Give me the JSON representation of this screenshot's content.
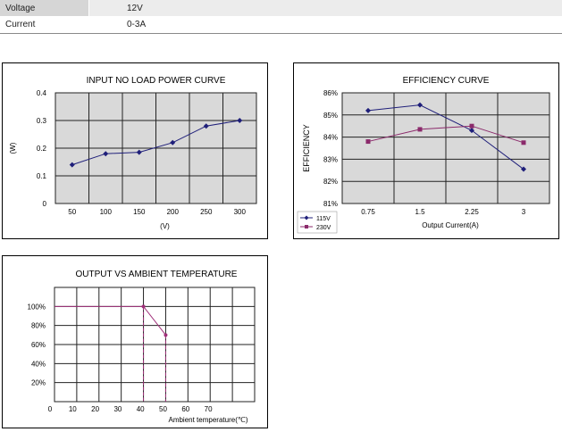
{
  "specs": [
    {
      "label": "Voltage",
      "value": "12V"
    },
    {
      "label": "Current",
      "value": "0-3A"
    }
  ],
  "colors": {
    "plot_bg": "#d9d9d9",
    "series_115v": "#1f1f7a",
    "series_230v": "#8b2a6b",
    "derating": "#a0307a",
    "grid": "#222222"
  },
  "chart_data": [
    {
      "type": "line",
      "title": "INPUT NO LOAD POWER CURVE",
      "xlabel": "(V)",
      "ylabel": "(W)",
      "x": [
        50,
        100,
        150,
        200,
        250,
        300
      ],
      "xtick_labels": [
        "50",
        "100",
        "150",
        "200",
        "250",
        "300"
      ],
      "ytick_labels": [
        "0",
        "0.1",
        "0.2",
        "0.3",
        "0.4"
      ],
      "ylim": [
        0,
        0.4
      ],
      "grid": true,
      "series": [
        {
          "values": [
            0.14,
            0.18,
            0.185,
            0.22,
            0.28,
            0.3
          ]
        }
      ]
    },
    {
      "type": "line",
      "title": "EFFICIENCY CURVE",
      "xlabel": "Output Current(A)",
      "ylabel": "EFFICIENCY",
      "x": [
        0.75,
        1.5,
        2.25,
        3
      ],
      "xtick_labels": [
        "0.75",
        "1.5",
        "2.25",
        "3"
      ],
      "ytick_labels": [
        "81%",
        "82%",
        "83%",
        "84%",
        "85%",
        "86%"
      ],
      "ylim": [
        81,
        86
      ],
      "grid": true,
      "legend": "bottom-left",
      "series": [
        {
          "name": "115V",
          "values": [
            85.2,
            85.45,
            84.3,
            82.55
          ]
        },
        {
          "name": "230V",
          "values": [
            83.8,
            84.35,
            84.5,
            83.75
          ]
        }
      ]
    },
    {
      "type": "line",
      "title": "OUTPUT VS AMBIENT TEMPERATURE",
      "xlabel": "Ambient temperature(℃)",
      "ylabel": "",
      "xtick_labels": [
        "0",
        "10",
        "20",
        "30",
        "40",
        "50",
        "60",
        "70"
      ],
      "ytick_labels": [
        "20%",
        "40%",
        "60%",
        "80%",
        "100%"
      ],
      "xlim": [
        0,
        90
      ],
      "ylim": [
        0,
        120
      ],
      "grid": true,
      "series": [
        {
          "points": [
            [
              0,
              100
            ],
            [
              40,
              100
            ],
            [
              50,
              70
            ]
          ]
        }
      ]
    }
  ]
}
